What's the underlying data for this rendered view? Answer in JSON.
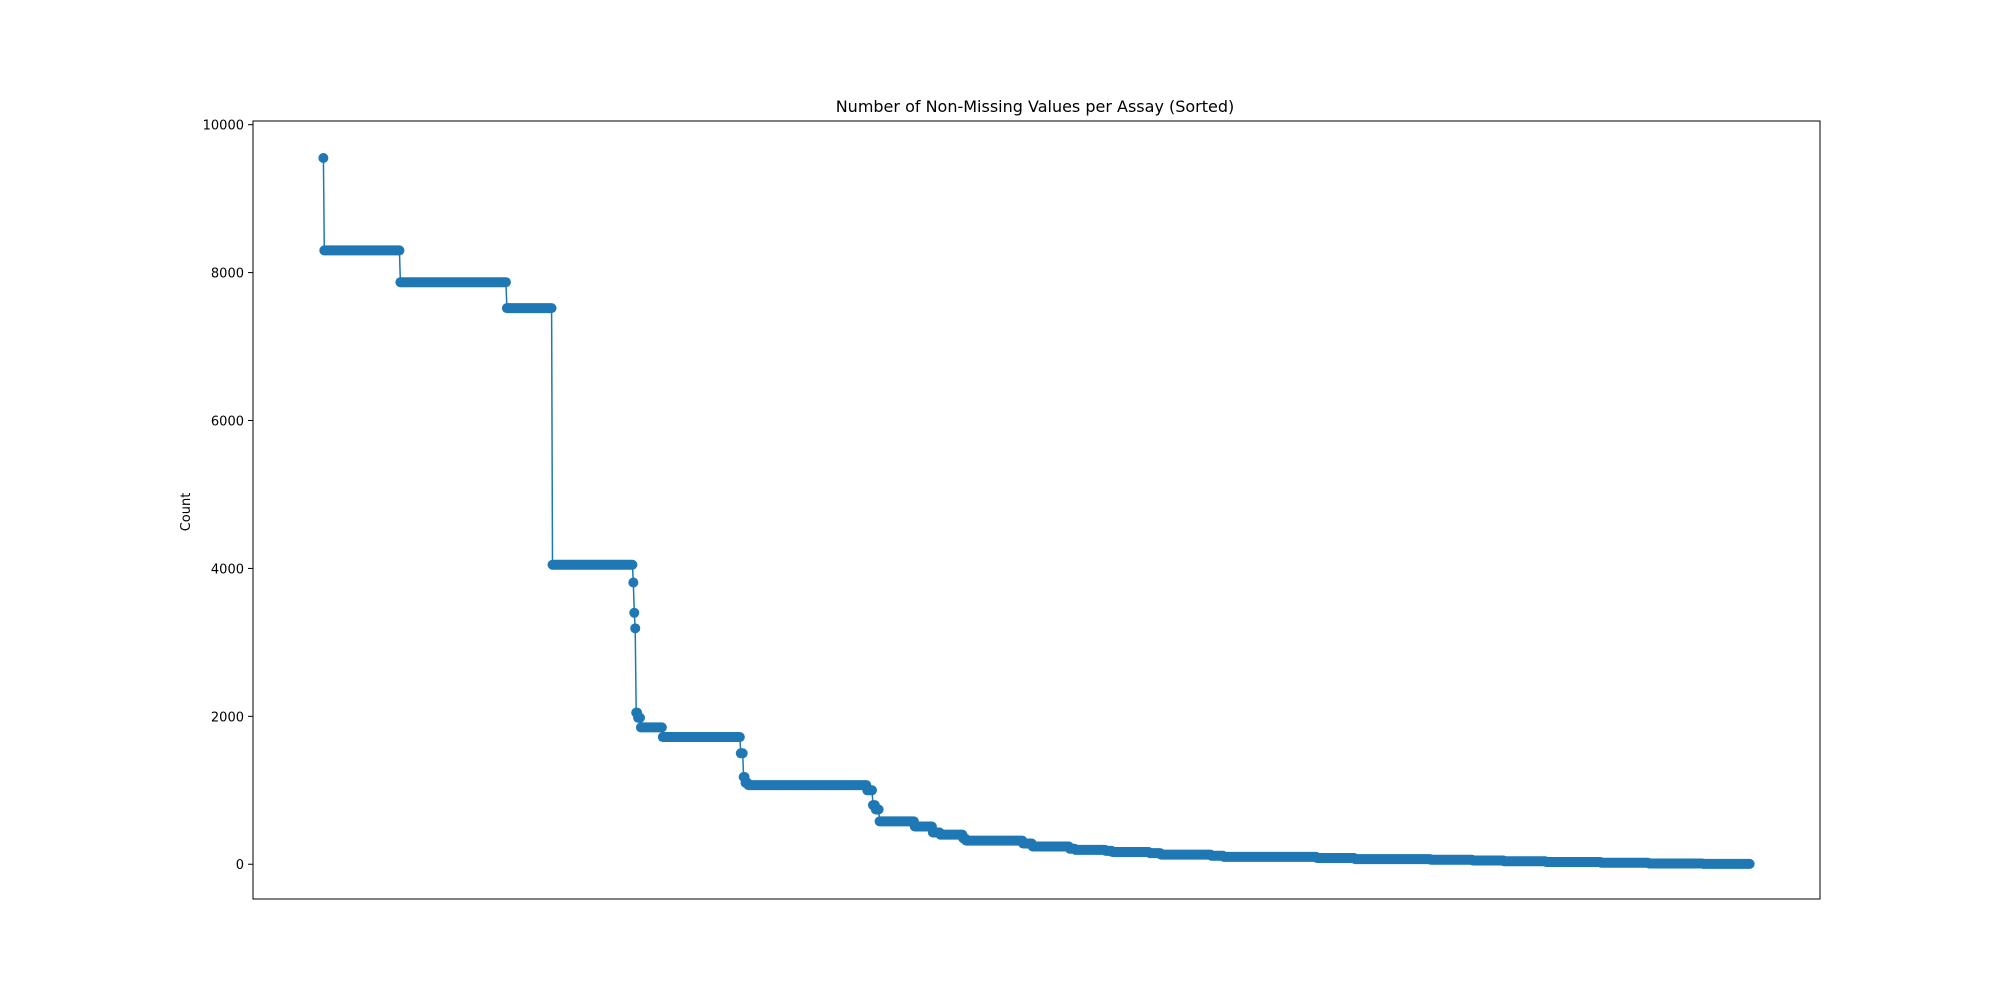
{
  "chart_data": {
    "type": "line",
    "title": "Number of Non-Missing Values per Assay (Sorted)",
    "xlabel": "",
    "ylabel": "Count",
    "xlim": [
      -74,
      1574
    ],
    "ylim": [
      -470,
      10050
    ],
    "yticks": [
      0,
      2000,
      4000,
      6000,
      8000,
      10000
    ],
    "ytick_labels": [
      "0",
      "2000",
      "4000",
      "6000",
      "8000",
      "10000"
    ],
    "xticks_shown": false,
    "grid": false,
    "legend": "none",
    "markers": true,
    "series": [
      {
        "color": "#1f77b4",
        "segments": [
          [
            0,
            0,
            9550
          ],
          [
            1,
            1,
            8300
          ],
          [
            2,
            80,
            8300
          ],
          [
            81,
            82,
            7870
          ],
          [
            83,
            192,
            7870
          ],
          [
            193,
            194,
            7520
          ],
          [
            195,
            240,
            7520
          ],
          [
            241,
            242,
            4050
          ],
          [
            243,
            325,
            4050
          ],
          [
            326,
            326,
            3810
          ],
          [
            327,
            327,
            3400
          ],
          [
            328,
            328,
            3190
          ],
          [
            329,
            330,
            2050
          ],
          [
            331,
            333,
            1980
          ],
          [
            334,
            356,
            1850
          ],
          [
            357,
            359,
            1720
          ],
          [
            360,
            438,
            1720
          ],
          [
            439,
            441,
            1500
          ],
          [
            442,
            443,
            1180
          ],
          [
            444,
            446,
            1100
          ],
          [
            447,
            571,
            1070
          ],
          [
            572,
            577,
            1000
          ],
          [
            578,
            580,
            800
          ],
          [
            581,
            584,
            740
          ],
          [
            585,
            621,
            580
          ],
          [
            622,
            640,
            510
          ],
          [
            641,
            648,
            430
          ],
          [
            649,
            672,
            400
          ],
          [
            673,
            675,
            350
          ],
          [
            676,
            735,
            320
          ],
          [
            736,
            745,
            280
          ],
          [
            746,
            784,
            240
          ],
          [
            785,
            790,
            210
          ],
          [
            791,
            822,
            195
          ],
          [
            823,
            829,
            180
          ],
          [
            830,
            868,
            165
          ],
          [
            869,
            880,
            150
          ],
          [
            881,
            933,
            130
          ],
          [
            934,
            946,
            115
          ],
          [
            947,
            1044,
            100
          ],
          [
            1045,
            1084,
            85
          ],
          [
            1085,
            1164,
            70
          ],
          [
            1165,
            1208,
            60
          ],
          [
            1209,
            1241,
            50
          ],
          [
            1242,
            1285,
            40
          ],
          [
            1286,
            1343,
            30
          ],
          [
            1344,
            1393,
            20
          ],
          [
            1394,
            1450,
            10
          ],
          [
            1451,
            1500,
            5
          ]
        ]
      }
    ]
  }
}
